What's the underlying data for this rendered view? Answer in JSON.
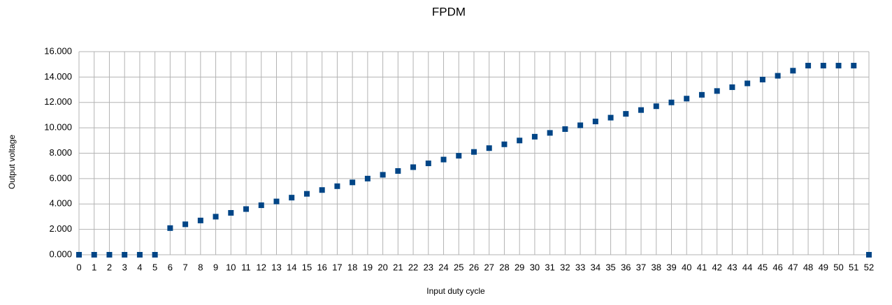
{
  "chart_data": {
    "type": "scatter",
    "title": "FPDM",
    "xlabel": "Input duty cycle",
    "ylabel": "Output voltage",
    "x": [
      0,
      1,
      2,
      3,
      4,
      5,
      6,
      7,
      8,
      9,
      10,
      11,
      12,
      13,
      14,
      15,
      16,
      17,
      18,
      19,
      20,
      21,
      22,
      23,
      24,
      25,
      26,
      27,
      28,
      29,
      30,
      31,
      32,
      33,
      34,
      35,
      36,
      37,
      38,
      39,
      40,
      41,
      42,
      43,
      44,
      45,
      46,
      47,
      48,
      49,
      50,
      51,
      52
    ],
    "series": [
      {
        "name": "Output voltage",
        "color": "#004586",
        "values": [
          0,
          0,
          0,
          0,
          0,
          0,
          2.1,
          2.4,
          2.7,
          3.0,
          3.3,
          3.6,
          3.9,
          4.2,
          4.5,
          4.8,
          5.1,
          5.4,
          5.7,
          6.0,
          6.3,
          6.6,
          6.9,
          7.2,
          7.5,
          7.8,
          8.1,
          8.4,
          8.7,
          9.0,
          9.3,
          9.6,
          9.9,
          10.2,
          10.5,
          10.8,
          11.1,
          11.4,
          11.7,
          12.0,
          12.3,
          12.6,
          12.9,
          13.2,
          13.5,
          13.8,
          14.1,
          14.5,
          14.9,
          14.9,
          14.9,
          14.9,
          0
        ]
      }
    ],
    "xlim": [
      0,
      52
    ],
    "xticks": [
      0,
      1,
      2,
      3,
      4,
      5,
      6,
      7,
      8,
      9,
      10,
      11,
      12,
      13,
      14,
      15,
      16,
      17,
      18,
      19,
      20,
      21,
      22,
      23,
      24,
      25,
      26,
      27,
      28,
      29,
      30,
      31,
      32,
      33,
      34,
      35,
      36,
      37,
      38,
      39,
      40,
      41,
      42,
      43,
      44,
      45,
      46,
      47,
      48,
      49,
      50,
      51,
      52
    ],
    "ylim": [
      0,
      16
    ],
    "yticks": [
      {
        "value": 0,
        "label": "0.000"
      },
      {
        "value": 2,
        "label": "2.000"
      },
      {
        "value": 4,
        "label": "4.000"
      },
      {
        "value": 6,
        "label": "6.000"
      },
      {
        "value": 8,
        "label": "8.000"
      },
      {
        "value": 10,
        "label": "10.000"
      },
      {
        "value": 12,
        "label": "12.000"
      },
      {
        "value": 14,
        "label": "14.000"
      },
      {
        "value": 16,
        "label": "16.000"
      }
    ],
    "grid": true
  }
}
